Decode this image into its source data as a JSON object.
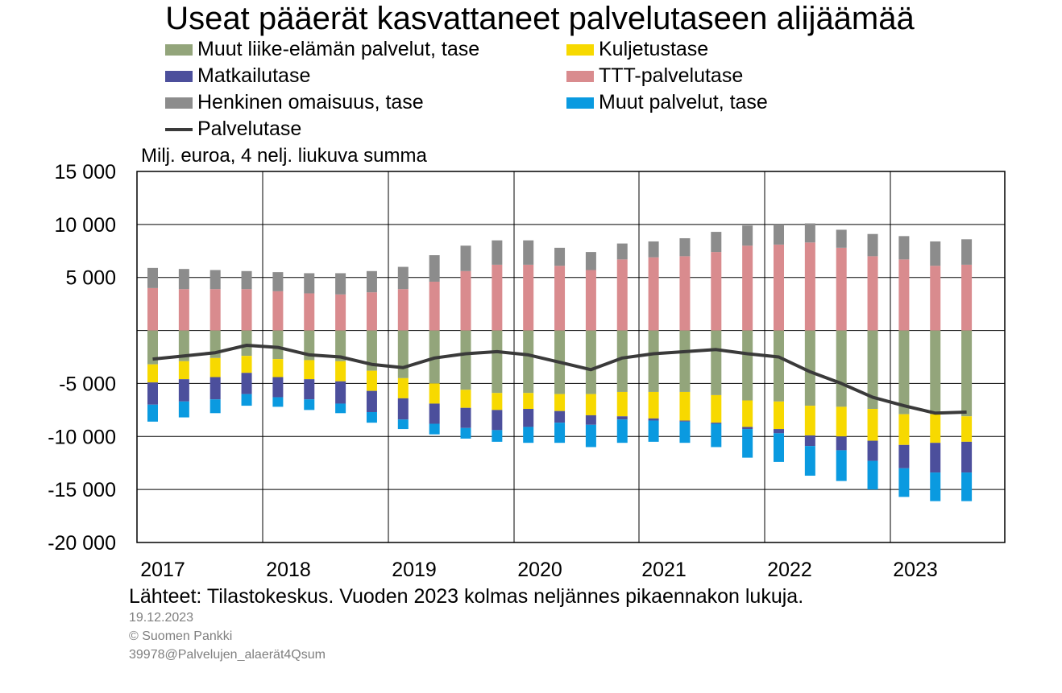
{
  "chart_data": {
    "type": "bar",
    "title": "Useat pääerät kasvattaneet palvelutaseen alijäämää",
    "ylabel": "Milj. euroa, 4 nelj. liukuva summa",
    "ylim": [
      -20000,
      15000
    ],
    "yticks": [
      15000,
      10000,
      5000,
      0,
      -5000,
      -10000,
      -15000,
      -20000
    ],
    "ytick_labels": [
      "15 000",
      "10 000",
      "5 000",
      "",
      "-5 000",
      "-10 000",
      "-15 000",
      "-20 000"
    ],
    "year_labels": [
      "2017",
      "2018",
      "2019",
      "2020",
      "2021",
      "2022",
      "2023"
    ],
    "legend_position": "top",
    "grid": true,
    "stacked": true,
    "categories": [
      "2017Q1",
      "2017Q2",
      "2017Q3",
      "2017Q4",
      "2018Q1",
      "2018Q2",
      "2018Q3",
      "2018Q4",
      "2019Q1",
      "2019Q2",
      "2019Q3",
      "2019Q4",
      "2020Q1",
      "2020Q2",
      "2020Q3",
      "2020Q4",
      "2021Q1",
      "2021Q2",
      "2021Q3",
      "2021Q4",
      "2022Q1",
      "2022Q2",
      "2022Q3",
      "2022Q4",
      "2023Q1",
      "2023Q2",
      "2023Q3"
    ],
    "series": [
      {
        "name": "Muut liike-elämän palvelut, tase",
        "kind": "bar",
        "color": "#93a57b",
        "values": [
          -3200,
          -2900,
          -2600,
          -2400,
          -2700,
          -2800,
          -2900,
          -3800,
          -4500,
          -5000,
          -5600,
          -5900,
          -5900,
          -6000,
          -6000,
          -5800,
          -5800,
          -5800,
          -6100,
          -6600,
          -6700,
          -7100,
          -7200,
          -7400,
          -7900,
          -7900,
          -8100
        ]
      },
      {
        "name": "Kuljetustase",
        "kind": "bar",
        "color": "#f7d900",
        "values": [
          -1700,
          -1700,
          -1800,
          -1600,
          -1700,
          -1800,
          -1900,
          -1900,
          -1900,
          -1900,
          -1700,
          -1600,
          -1500,
          -1600,
          -2000,
          -2300,
          -2500,
          -2700,
          -2600,
          -2500,
          -2600,
          -2800,
          -2800,
          -3000,
          -2900,
          -2700,
          -2400
        ]
      },
      {
        "name": "Matkailutase",
        "kind": "bar",
        "color": "#4c4f9c",
        "values": [
          -2100,
          -2100,
          -2100,
          -2000,
          -1900,
          -1900,
          -2100,
          -2000,
          -2000,
          -1900,
          -1900,
          -1900,
          -1700,
          -1100,
          -900,
          -300,
          -200,
          -100,
          -100,
          -200,
          -400,
          -1000,
          -1300,
          -1900,
          -2200,
          -2800,
          -2900
        ]
      },
      {
        "name": "Muut palvelut, tase",
        "kind": "bar",
        "color": "#0a9ae0",
        "values": [
          -1600,
          -1500,
          -1300,
          -1100,
          -900,
          -1000,
          -900,
          -1000,
          -900,
          -1000,
          -1000,
          -1100,
          -1500,
          -1900,
          -2100,
          -2200,
          -2000,
          -2000,
          -2200,
          -2700,
          -2700,
          -2800,
          -2900,
          -2700,
          -2700,
          -2700,
          -2700
        ]
      },
      {
        "name": "TTT-palvelutase",
        "kind": "bar",
        "color": "#d98b8e",
        "values": [
          4000,
          3900,
          3900,
          3900,
          3700,
          3500,
          3400,
          3600,
          3900,
          4600,
          5600,
          6200,
          6200,
          6100,
          5700,
          6700,
          6900,
          7000,
          7400,
          8000,
          8100,
          8300,
          7800,
          7000,
          6700,
          6100,
          6200
        ]
      },
      {
        "name": "Henkinen omaisuus, tase",
        "kind": "bar",
        "color": "#8c8c8c",
        "values": [
          1900,
          1900,
          1800,
          1700,
          1800,
          1900,
          2000,
          2000,
          2100,
          2500,
          2400,
          2300,
          2300,
          1700,
          1700,
          1500,
          1500,
          1700,
          1900,
          1900,
          1900,
          1800,
          1700,
          2100,
          2200,
          2300,
          2400
        ]
      },
      {
        "name": "Palvelutase",
        "kind": "line",
        "color": "#3a3a3a",
        "values": [
          -2700,
          -2400,
          -2100,
          -1400,
          -1600,
          -2300,
          -2500,
          -3200,
          -3500,
          -2600,
          -2200,
          -2000,
          -2300,
          -3000,
          -3700,
          -2600,
          -2200,
          -2000,
          -1800,
          -2200,
          -2500,
          -3900,
          -5000,
          -6300,
          -7100,
          -7800,
          -7700
        ]
      }
    ],
    "legend_order": [
      0,
      1,
      2,
      4,
      5,
      3,
      6
    ]
  },
  "footer": {
    "source": "Lähteet: Tilastokeskus. Vuoden 2023 kolmas neljännes pikaennakon lukuja.",
    "date": "19.12.2023",
    "copyright": "© Suomen Pankki",
    "code": "39978@Palvelujen_alaerät4Qsum"
  }
}
